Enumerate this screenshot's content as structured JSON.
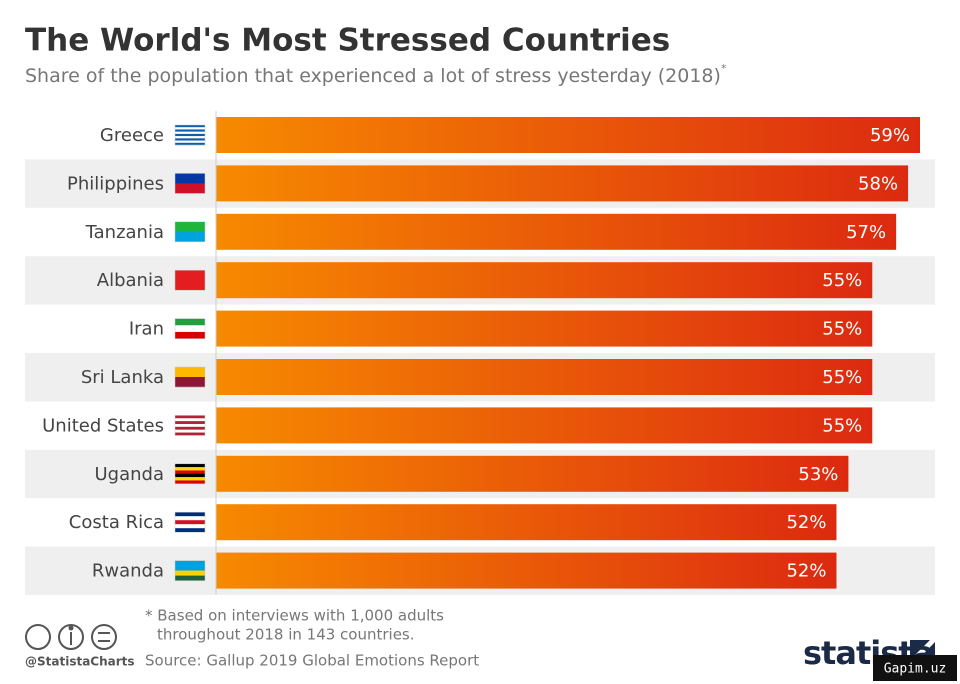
{
  "chart_data": {
    "type": "bar",
    "orientation": "horizontal",
    "title": "The World's Most Stressed Countries",
    "subtitle": "Share of the population that experienced a lot of stress yesterday (2018)",
    "subtitle_mark": "*",
    "categories": [
      "Greece",
      "Philippines",
      "Tanzania",
      "Albania",
      "Iran",
      "Sri Lanka",
      "United States",
      "Uganda",
      "Costa Rica",
      "Rwanda"
    ],
    "values": [
      59,
      58,
      57,
      55,
      55,
      55,
      55,
      53,
      52,
      52
    ],
    "value_labels": [
      "59%",
      "58%",
      "57%",
      "55%",
      "55%",
      "55%",
      "55%",
      "53%",
      "52%",
      "52%"
    ],
    "gradient": [
      "#f78a00",
      "#dc2a10"
    ],
    "note": [
      "* Based on interviews with 1,000 adults",
      "throughout 2018 in 143 countries."
    ],
    "source": "Source: Gallup 2019 Global Emotions Report",
    "handle": "@StatistaCharts",
    "brand": "statista",
    "watermark": "Gapim.uz"
  }
}
